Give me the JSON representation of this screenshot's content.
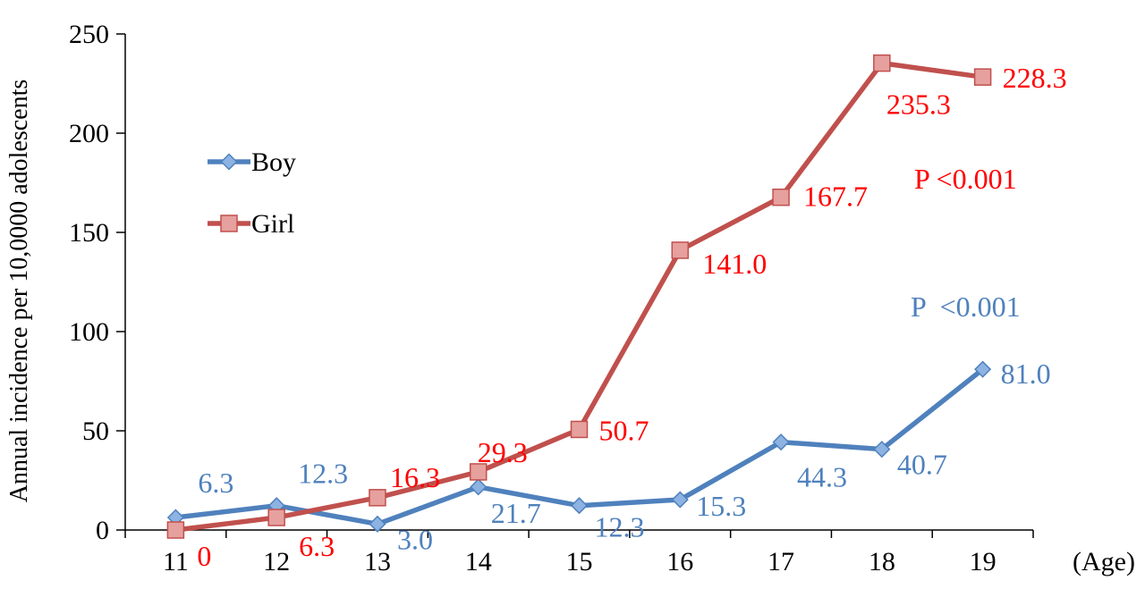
{
  "chart_data": {
    "type": "line",
    "categories": [
      "11",
      "12",
      "13",
      "14",
      "15",
      "16",
      "17",
      "18",
      "19"
    ],
    "xlabel": "(Age)",
    "ylabel": "Annual incidence per 10,0000 adolescents",
    "ylim": [
      0,
      250
    ],
    "yticks": [
      "0",
      "50",
      "100",
      "150",
      "200",
      "250"
    ],
    "grid": false,
    "legend_position": "upper-left",
    "series": [
      {
        "name": "Boy",
        "color": "#4f81bd",
        "marker": "diamond",
        "values": [
          6.3,
          12.3,
          3.0,
          21.7,
          12.3,
          15.3,
          44.3,
          40.7,
          81.0
        ],
        "labels": [
          "6.3",
          "12.3",
          "3.0",
          "21.7",
          "12.3",
          "15.3",
          "44.3",
          "40.7",
          "81.0"
        ]
      },
      {
        "name": "Girl",
        "color": "#c0504d",
        "marker": "square",
        "values": [
          0,
          6.3,
          16.3,
          29.3,
          50.7,
          141.0,
          167.7,
          235.3,
          228.3
        ],
        "labels": [
          "0",
          "6.3",
          "16.3",
          "29.3",
          "50.7",
          "141.0",
          "167.7",
          "235.3",
          "228.3"
        ]
      }
    ],
    "annotations": [
      {
        "text": "P <0.001",
        "color": "#ff0000"
      },
      {
        "text": "P  <0.001",
        "color": "#4f81bd"
      }
    ],
    "label_colors": {
      "Boy": "#4f81bd",
      "Girl": "#ff0000"
    }
  }
}
